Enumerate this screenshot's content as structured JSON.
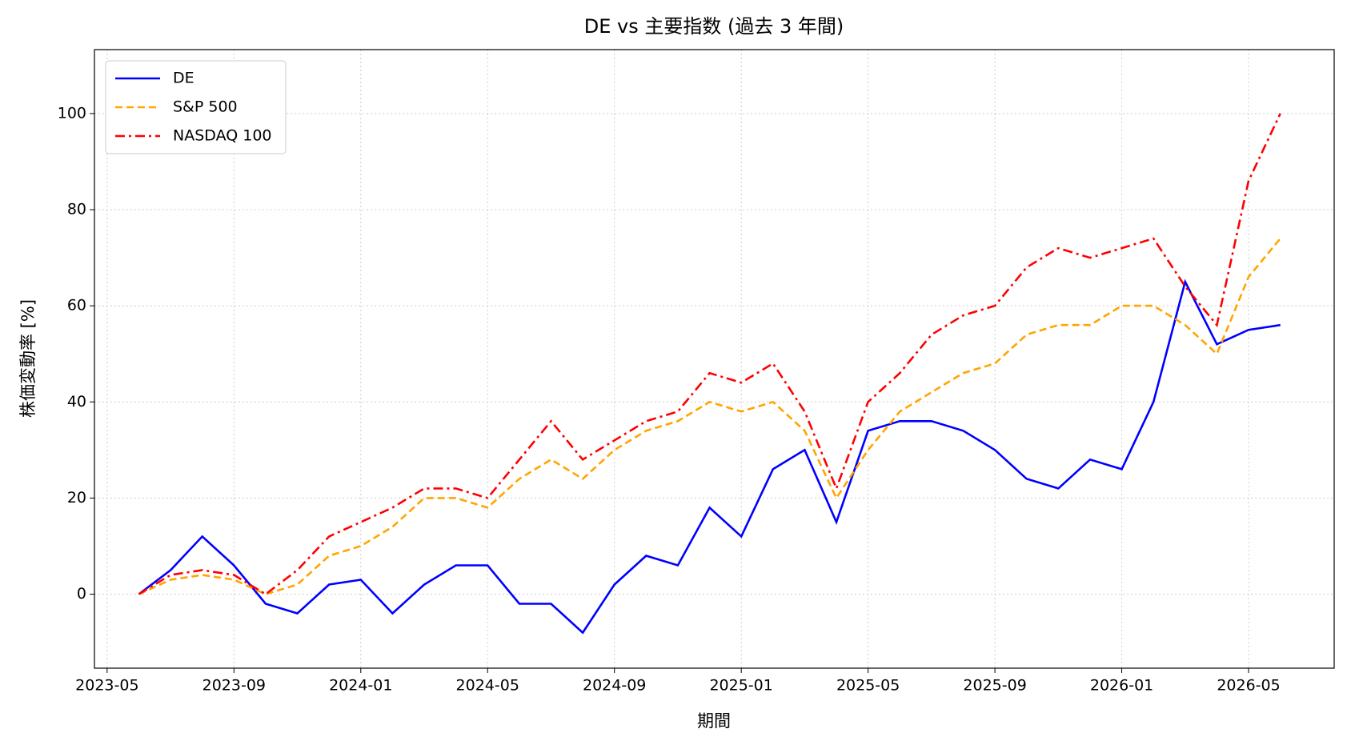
{
  "chart_data": {
    "type": "line",
    "title": "DE vs 主要指数 (過去 3 年間)",
    "x_label": "期間",
    "y_label": "株価変動率 [%]",
    "x": [
      "2023-06",
      "2023-07",
      "2023-08",
      "2023-09",
      "2023-10",
      "2023-11",
      "2023-12",
      "2024-01",
      "2024-02",
      "2024-03",
      "2024-04",
      "2024-05",
      "2024-06",
      "2024-07",
      "2024-08",
      "2024-09",
      "2024-10",
      "2024-11",
      "2024-12",
      "2025-01",
      "2025-02",
      "2025-03",
      "2025-04",
      "2025-05",
      "2025-06",
      "2025-07",
      "2025-08",
      "2025-09",
      "2025-10",
      "2025-11",
      "2025-12",
      "2026-01",
      "2026-02",
      "2026-03",
      "2026-04",
      "2026-05",
      "2026-06"
    ],
    "series": [
      {
        "name": "DE",
        "color": "#0000ff",
        "linestyle": "solid",
        "values": [
          0,
          5,
          12,
          6,
          -2,
          -4,
          2,
          3,
          -4,
          2,
          6,
          6,
          -2,
          -2,
          -8,
          2,
          8,
          6,
          18,
          12,
          26,
          30,
          15,
          34,
          36,
          36,
          34,
          30,
          24,
          22,
          28,
          26,
          40,
          65,
          52,
          55,
          56
        ]
      },
      {
        "name": "S&P 500",
        "color": "#ffa500",
        "linestyle": "dashed",
        "values": [
          0,
          3,
          4,
          3,
          0,
          2,
          8,
          10,
          14,
          20,
          20,
          18,
          24,
          28,
          24,
          30,
          34,
          36,
          40,
          38,
          40,
          34,
          20,
          30,
          38,
          42,
          46,
          48,
          54,
          56,
          56,
          60,
          60,
          56,
          50,
          66,
          74
        ]
      },
      {
        "name": "NASDAQ 100",
        "color": "#ff0000",
        "linestyle": "dashdot",
        "values": [
          0,
          4,
          5,
          4,
          0,
          5,
          12,
          15,
          18,
          22,
          22,
          20,
          28,
          36,
          28,
          32,
          36,
          38,
          46,
          44,
          48,
          38,
          22,
          40,
          46,
          54,
          58,
          60,
          68,
          72,
          70,
          72,
          74,
          64,
          56,
          86,
          100
        ]
      }
    ],
    "xlim": [
      "2023-05",
      "2026-08"
    ],
    "xticks": [
      "2023-05",
      "2023-09",
      "2024-01",
      "2024-05",
      "2024-09",
      "2025-01",
      "2025-05",
      "2025-09",
      "2026-01",
      "2026-05"
    ],
    "ylim": [
      -15.4,
      113.3
    ],
    "yticks": [
      0,
      20,
      40,
      60,
      80,
      100
    ],
    "grid": true,
    "legend": "upper left"
  }
}
